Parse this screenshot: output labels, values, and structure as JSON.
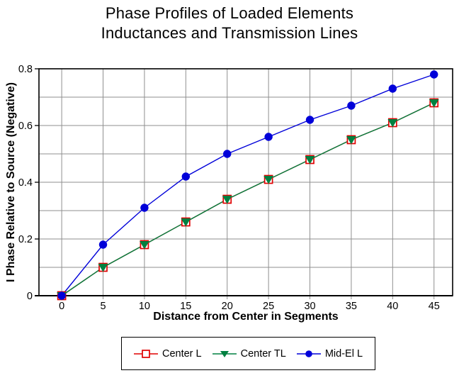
{
  "title": {
    "line1": "Phase Profiles of Loaded Elements",
    "line2": "Inductances and Transmission Lines"
  },
  "chart_data": {
    "type": "line",
    "title": "Phase Profiles of Loaded Elements Inductances and Transmission Lines",
    "xlabel": "Distance from Center in Segments",
    "ylabel": "I Phase Relative to Source (Negative)",
    "x": [
      0,
      5,
      10,
      15,
      20,
      25,
      30,
      35,
      40,
      45
    ],
    "xlim": [
      -2.75,
      47.25
    ],
    "ylim": [
      0,
      0.8
    ],
    "x_ticks": [
      0,
      5,
      10,
      15,
      20,
      25,
      30,
      35,
      40,
      45
    ],
    "y_ticks": [
      0,
      0.2,
      0.4,
      0.6,
      0.8
    ],
    "y_gridlines": [
      0.1,
      0.2,
      0.3,
      0.4,
      0.5,
      0.6,
      0.7
    ],
    "grid": true,
    "legend_position": "bottom",
    "background_color": "#ffffff",
    "grid_color": "#8f8f8f",
    "axis_color": "#000000",
    "series": [
      {
        "name": "Center L",
        "marker": "open-square",
        "color": "#e00000",
        "values": [
          0,
          0.1,
          0.18,
          0.26,
          0.34,
          0.41,
          0.48,
          0.55,
          0.61,
          0.68
        ]
      },
      {
        "name": "Center TL",
        "marker": "triangle-down",
        "color": "#008040",
        "values": [
          0,
          0.1,
          0.18,
          0.26,
          0.34,
          0.41,
          0.48,
          0.55,
          0.61,
          0.68
        ]
      },
      {
        "name": "Mid-El L",
        "marker": "circle",
        "color": "#0000d9",
        "values": [
          0,
          0.18,
          0.31,
          0.42,
          0.5,
          0.56,
          0.62,
          0.67,
          0.73,
          0.78
        ]
      }
    ]
  }
}
